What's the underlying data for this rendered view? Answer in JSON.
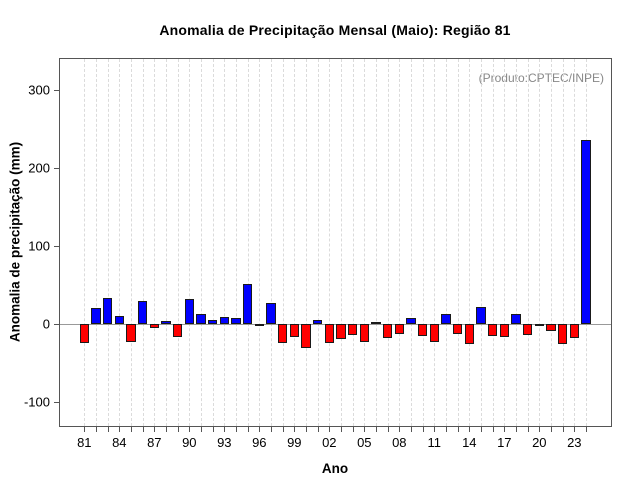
{
  "chart_data": {
    "type": "bar",
    "title": "Anomalia de Precipitação Mensal (Maio): Região 81",
    "annotation": "(Produto:CPTEC/INPE)",
    "xlabel": "Ano",
    "ylabel": "Anomalia de precipitação (mm)",
    "ylim": [
      -131,
      339
    ],
    "grid": "vertical-dashed-per-year",
    "legend": "none",
    "yticks": [
      {
        "value": 300,
        "label": "300"
      },
      {
        "value": 200,
        "label": "200"
      },
      {
        "value": 100,
        "label": "100"
      },
      {
        "value": 0,
        "label": "0"
      },
      {
        "value": -100,
        "label": "-100"
      }
    ],
    "x_tick_label_every": 3,
    "x_tick_labels": [
      "81",
      "84",
      "87",
      "90",
      "93",
      "96",
      "99",
      "02",
      "05",
      "08",
      "11",
      "14",
      "17",
      "20",
      "23"
    ],
    "years": [
      1981,
      1982,
      1983,
      1984,
      1985,
      1986,
      1987,
      1988,
      1989,
      1990,
      1991,
      1992,
      1993,
      1994,
      1995,
      1996,
      1997,
      1998,
      1999,
      2000,
      2001,
      2002,
      2003,
      2004,
      2005,
      2006,
      2007,
      2008,
      2009,
      2010,
      2011,
      2012,
      2013,
      2014,
      2015,
      2016,
      2017,
      2018,
      2019,
      2020,
      2021,
      2022,
      2023,
      2024
    ],
    "values": [
      -25,
      20,
      33,
      10,
      -23,
      29,
      -5,
      4,
      -17,
      32,
      12,
      5,
      9,
      7,
      51,
      -2,
      27,
      -25,
      -17,
      -31,
      5,
      -25,
      -20,
      -14,
      -24,
      2,
      -19,
      -13,
      8,
      -16,
      -24,
      12,
      -13,
      -26,
      21,
      -16,
      -17,
      13,
      -14,
      -2,
      -9,
      -26,
      -18,
      235
    ],
    "colors": {
      "positive": "#0000ff",
      "negative": "#ff0000",
      "bar_border": "#1a1a1a",
      "frame": "#555555",
      "grid": "#dbdbdb",
      "zero_line": "#999999",
      "annotation_text": "#888888",
      "text": "#000000"
    }
  }
}
